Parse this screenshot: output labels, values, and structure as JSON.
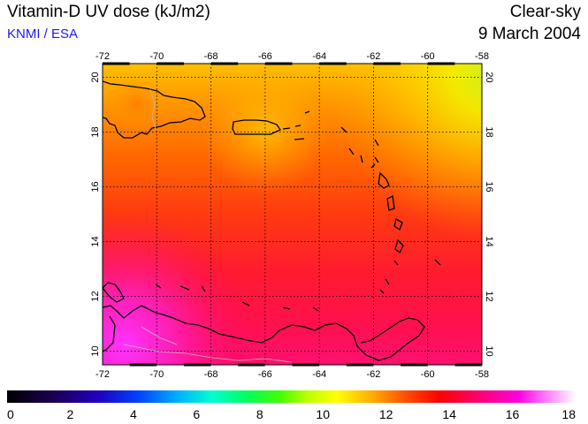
{
  "header": {
    "title": "Vitamin-D UV dose (kJ/m2)",
    "source": "KNMI / ESA",
    "subtitle": "Clear-sky",
    "date": "9 March 2004"
  },
  "map": {
    "lon_range": [
      -72,
      -58
    ],
    "lat_range": [
      9.5,
      20.5
    ],
    "lon_ticks": [
      "-72",
      "-70",
      "-68",
      "-66",
      "-64",
      "-62",
      "-60",
      "-58"
    ],
    "lat_ticks": [
      "10",
      "12",
      "14",
      "16",
      "18",
      "20"
    ],
    "grid": "dotted",
    "coastline_color": "#000000",
    "border_color": "#bbbbbb"
  },
  "colorbar": {
    "min": 0,
    "max": 18,
    "labels": [
      "0",
      "2",
      "4",
      "6",
      "8",
      "10",
      "12",
      "14",
      "16",
      "18"
    ]
  }
}
